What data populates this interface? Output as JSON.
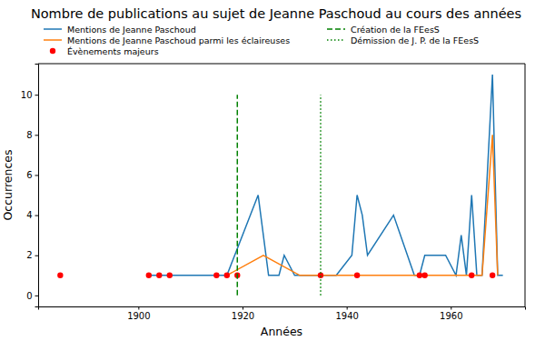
{
  "chart_data": {
    "type": "line",
    "title": "Nombre de publications au sujet de Jeanne Paschoud au cours des années",
    "x_label": "Années",
    "y_label": "Occurrences",
    "xlim": [
      1880.75,
      1974.25
    ],
    "ylim": [
      -0.55,
      11.55
    ],
    "xticks": [
      1900,
      1920,
      1940,
      1960
    ],
    "yticks": [
      0,
      2,
      4,
      6,
      8,
      10
    ],
    "grid": false,
    "legend": "top",
    "series": [
      {
        "name": "Mentions de Jeanne Paschoud",
        "type": "line",
        "color": "#1f77b4",
        "line_style": "solid",
        "x": [
          1902,
          1904,
          1906,
          1915,
          1917,
          1923,
          1925,
          1927,
          1928,
          1930,
          1935,
          1938,
          1941,
          1942,
          1943,
          1944,
          1949,
          1953,
          1954,
          1955,
          1959,
          1961,
          1962,
          1963,
          1964,
          1965,
          1966,
          1968,
          1969,
          1970
        ],
        "values": [
          1,
          1,
          1,
          1,
          1,
          5,
          1,
          1,
          2,
          1,
          1,
          1,
          2,
          5,
          4,
          2,
          4,
          1,
          1,
          2,
          2,
          1,
          3,
          1,
          5,
          1,
          1,
          11,
          1,
          1
        ]
      },
      {
        "name": "Mentions de Jeanne Paschoud parmi les éclaireuses",
        "type": "line",
        "color": "#ff7f0e",
        "line_style": "solid",
        "x": [
          1917,
          1924,
          1931,
          1935,
          1942,
          1955,
          1964,
          1966,
          1968,
          1969
        ],
        "values": [
          1,
          2,
          1,
          1,
          1,
          1,
          1,
          1,
          8,
          1
        ]
      },
      {
        "name": "Évènements majeurs",
        "type": "scatter",
        "color": "#ff0000",
        "marker": "circle",
        "x": [
          1885,
          1902,
          1904,
          1906,
          1915,
          1917,
          1919,
          1935,
          1942,
          1954,
          1955,
          1964,
          1968
        ],
        "values": [
          1,
          1,
          1,
          1,
          1,
          1,
          1,
          1,
          1,
          1,
          1,
          1,
          1
        ]
      },
      {
        "name": "Création de la FEesS",
        "type": "line",
        "color": "#008000",
        "line_style": "dashed",
        "x": [
          1919,
          1919
        ],
        "values": [
          0,
          10
        ]
      },
      {
        "name": "Démission de J. P. de la FEesS",
        "type": "line",
        "color": "#008000",
        "line_style": "dotted",
        "x": [
          1935,
          1935
        ],
        "values": [
          0,
          10
        ]
      }
    ]
  }
}
